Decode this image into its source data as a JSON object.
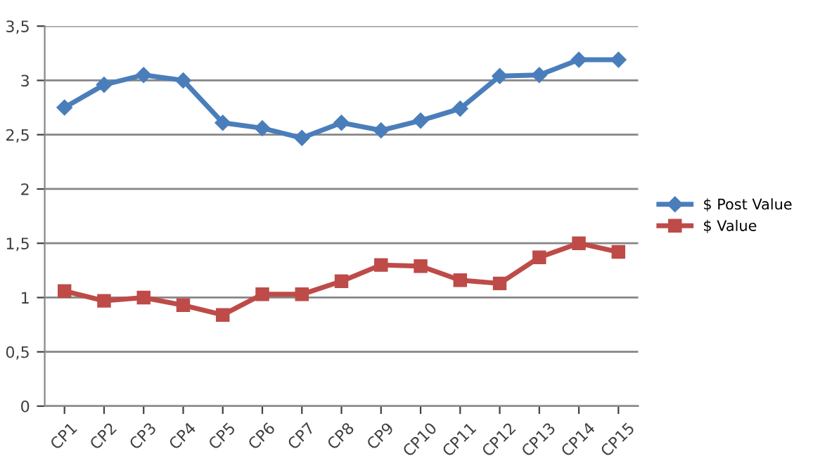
{
  "chart_data": {
    "type": "line",
    "categories": [
      "CP1",
      "CP2",
      "CP3",
      "CP4",
      "CP5",
      "CP6",
      "CP7",
      "CP8",
      "CP9",
      "CP10",
      "CP11",
      "CP12",
      "CP13",
      "CP14",
      "CP15"
    ],
    "series": [
      {
        "name": "$ Post Value",
        "color": "#4a7ebb",
        "marker": "diamond",
        "values": [
          2.75,
          2.96,
          3.05,
          3.0,
          2.61,
          2.56,
          2.47,
          2.61,
          2.54,
          2.63,
          2.74,
          3.04,
          3.05,
          3.19,
          3.19
        ]
      },
      {
        "name": "$ Value",
        "color": "#be4b48",
        "marker": "square",
        "values": [
          1.06,
          0.97,
          1.0,
          0.93,
          0.84,
          1.03,
          1.03,
          1.15,
          1.3,
          1.29,
          1.16,
          1.13,
          1.37,
          1.5,
          1.42
        ]
      }
    ],
    "ylim": [
      0,
      3.5
    ],
    "yticks": [
      0,
      {
        "value": 0.5,
        "label": "0,5"
      },
      1,
      {
        "value": 1.5,
        "label": "1,5"
      },
      2,
      {
        "value": 2.5,
        "label": "2,5"
      },
      3,
      {
        "value": 3.5,
        "label": "3,5"
      }
    ],
    "grid": "y",
    "legend": "right",
    "line_style": "solid"
  }
}
